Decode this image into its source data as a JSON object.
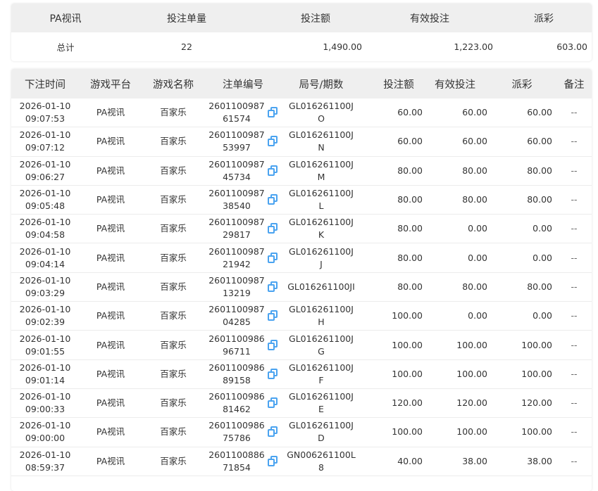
{
  "summary": {
    "headers": [
      "PA视讯",
      "投注单量",
      "投注额",
      "有效投注",
      "派彩"
    ],
    "values": [
      "总计",
      "22",
      "1,490.00",
      "1,223.00",
      "603.00"
    ]
  },
  "table": {
    "headers": [
      "下注时间",
      "游戏平台",
      "游戏名称",
      "注单编号",
      "局号/期数",
      "投注额",
      "有效投注",
      "派彩",
      "备注"
    ],
    "rows": [
      [
        "2026-01-10",
        "09:07:53",
        "PA视讯",
        "百家乐",
        "2601100987",
        "61574",
        "GL016261100J",
        "O",
        "60.00",
        "60.00",
        "60.00",
        "--"
      ],
      [
        "2026-01-10",
        "09:07:12",
        "PA视讯",
        "百家乐",
        "2601100987",
        "53997",
        "GL016261100J",
        "N",
        "60.00",
        "60.00",
        "60.00",
        "--"
      ],
      [
        "2026-01-10",
        "09:06:27",
        "PA视讯",
        "百家乐",
        "2601100987",
        "45734",
        "GL016261100J",
        "M",
        "80.00",
        "80.00",
        "80.00",
        "--"
      ],
      [
        "2026-01-10",
        "09:05:48",
        "PA视讯",
        "百家乐",
        "2601100987",
        "38540",
        "GL016261100J",
        "L",
        "80.00",
        "80.00",
        "80.00",
        "--"
      ],
      [
        "2026-01-10",
        "09:04:58",
        "PA视讯",
        "百家乐",
        "2601100987",
        "29817",
        "GL016261100J",
        "K",
        "80.00",
        "0.00",
        "0.00",
        "--"
      ],
      [
        "2026-01-10",
        "09:04:14",
        "PA视讯",
        "百家乐",
        "2601100987",
        "21942",
        "GL016261100J",
        "J",
        "80.00",
        "0.00",
        "0.00",
        "--"
      ],
      [
        "2026-01-10",
        "09:03:29",
        "PA视讯",
        "百家乐",
        "2601100987",
        "13219",
        "GL016261100JI",
        "",
        "80.00",
        "80.00",
        "80.00",
        "--"
      ],
      [
        "2026-01-10",
        "09:02:39",
        "PA视讯",
        "百家乐",
        "2601100987",
        "04285",
        "GL016261100J",
        "H",
        "100.00",
        "0.00",
        "0.00",
        "--"
      ],
      [
        "2026-01-10",
        "09:01:55",
        "PA视讯",
        "百家乐",
        "2601100986",
        "96711",
        "GL016261100J",
        "G",
        "100.00",
        "100.00",
        "100.00",
        "--"
      ],
      [
        "2026-01-10",
        "09:01:14",
        "PA视讯",
        "百家乐",
        "2601100986",
        "89158",
        "GL016261100J",
        "F",
        "100.00",
        "100.00",
        "100.00",
        "--"
      ],
      [
        "2026-01-10",
        "09:00:33",
        "PA视讯",
        "百家乐",
        "2601100986",
        "81462",
        "GL016261100J",
        "E",
        "120.00",
        "120.00",
        "120.00",
        "--"
      ],
      [
        "2026-01-10",
        "09:00:00",
        "PA视讯",
        "百家乐",
        "2601100986",
        "75786",
        "GL016261100J",
        "D",
        "100.00",
        "100.00",
        "100.00",
        "--"
      ],
      [
        "2026-01-10",
        "08:59:37",
        "PA视讯",
        "百家乐",
        "2601100886",
        "71854",
        "GN006261100L",
        "8",
        "40.00",
        "38.00",
        "38.00",
        "--"
      ]
    ]
  },
  "icons": {
    "copy": "copy-icon"
  },
  "colors": {
    "header_bg": "#efefef",
    "accent": "#4aa3f0"
  }
}
